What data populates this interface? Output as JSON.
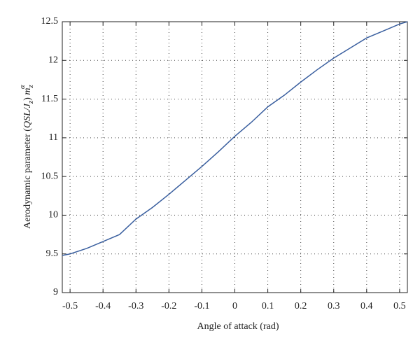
{
  "chart_data": {
    "type": "line",
    "xlabel": "Angle of attack (rad)",
    "ylabel": [
      "Aerodynamic parameter (",
      "QSL/J",
      "z",
      ") ",
      "m",
      "z",
      "α"
    ],
    "x": [
      -0.5236,
      -0.5,
      -0.45,
      -0.4,
      -0.35,
      -0.3,
      -0.25,
      -0.2,
      -0.15,
      -0.1,
      -0.05,
      0,
      0.05,
      0.1,
      0.15,
      0.2,
      0.25,
      0.3,
      0.35,
      0.4,
      0.45,
      0.5,
      0.5236
    ],
    "series": [
      {
        "color": "#3a5f9f",
        "values": [
          9.48,
          9.5,
          9.57,
          9.66,
          9.75,
          9.95,
          10.1,
          10.27,
          10.45,
          10.63,
          10.82,
          11.02,
          11.2,
          11.4,
          11.55,
          11.72,
          11.88,
          12.03,
          12.16,
          12.29,
          12.38,
          12.47,
          12.5
        ]
      }
    ],
    "xlim": [
      -0.5236,
      0.5236
    ],
    "ylim": [
      9,
      12.5
    ],
    "xticks": [
      -0.5,
      -0.4,
      -0.3,
      -0.2,
      -0.1,
      0,
      0.1,
      0.2,
      0.3,
      0.4,
      0.5
    ],
    "yticks": [
      9,
      9.5,
      10,
      10.5,
      11,
      11.5,
      12,
      12.5
    ],
    "grid": true
  }
}
